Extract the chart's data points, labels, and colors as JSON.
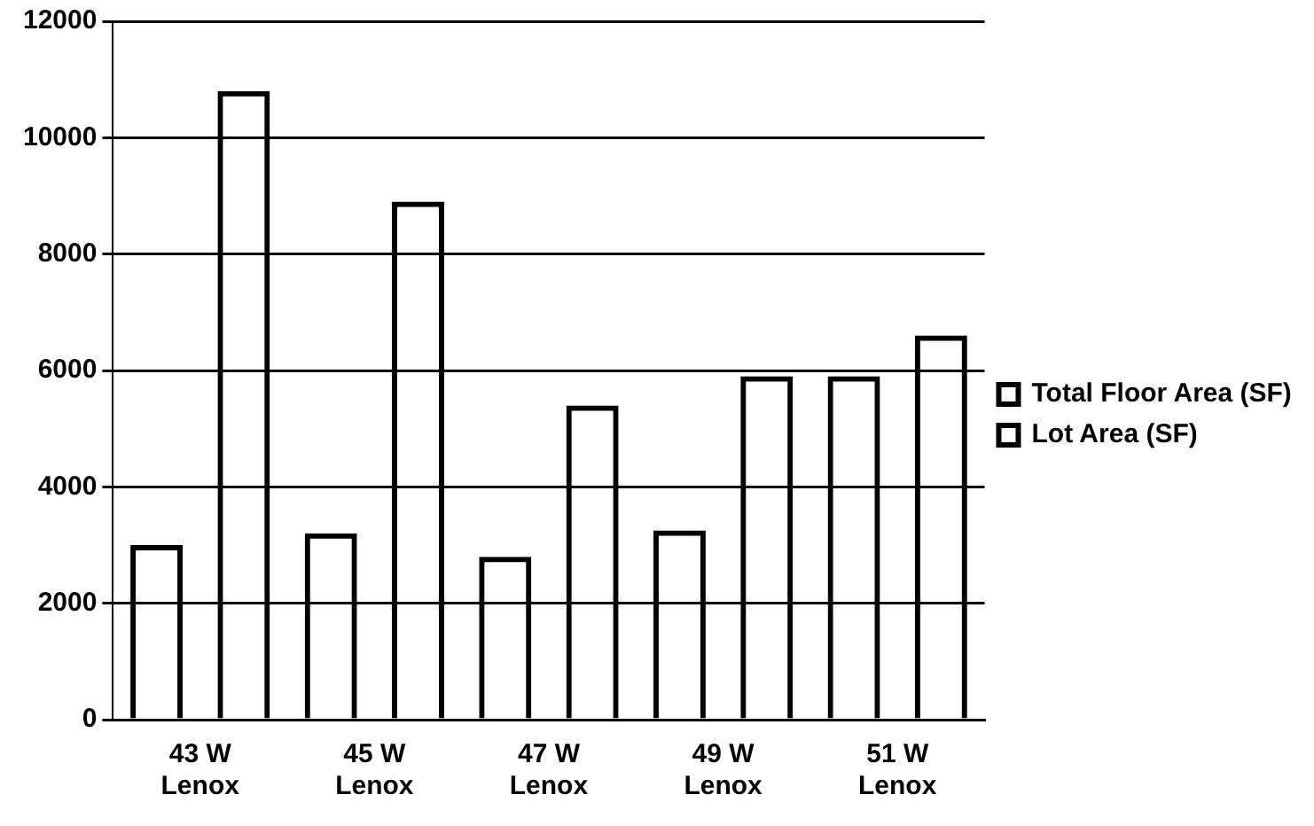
{
  "chart_data": {
    "type": "bar",
    "categories": [
      "43 W Lenox",
      "45 W Lenox",
      "47 W Lenox",
      "49 W Lenox",
      "51 W Lenox"
    ],
    "series": [
      {
        "name": "Total Floor Area (SF)",
        "color": "#000000",
        "values": [
          3000,
          3200,
          2800,
          3250,
          5900
        ]
      },
      {
        "name": "Lot Area (SF)",
        "color": "#000000",
        "values": [
          10800,
          8900,
          5400,
          5900,
          6600
        ]
      }
    ],
    "ylim": [
      0,
      12000
    ],
    "yticks": [
      0,
      2000,
      4000,
      6000,
      8000,
      10000,
      12000
    ],
    "grid": "y",
    "legend": "right"
  }
}
